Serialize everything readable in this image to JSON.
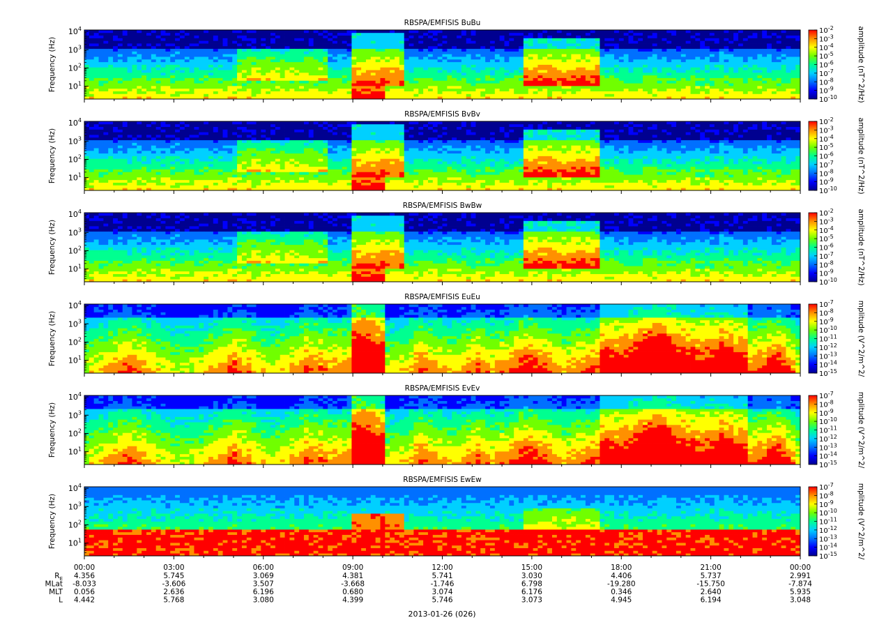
{
  "figure": {
    "date_label": "2013-01-26 (026)"
  },
  "chart_data": [
    {
      "type": "heatmap",
      "title": "RBSPA/EMFISIS  BuBu",
      "ylabel": "Frequency (Hz)",
      "yscale": "log",
      "ylim": [
        2,
        12000
      ],
      "yticks": [
        "10^1",
        "10^2",
        "10^3",
        "10^4"
      ],
      "colorbar_label": "amplitude (nT^2/Hz)",
      "colorbar_range": [
        "10^-10",
        "10^-2"
      ],
      "colorbar_ticks": [
        "10^-2",
        "10^-3",
        "10^-4",
        "10^-5",
        "10^-6",
        "10^-7",
        "10^-8",
        "10^-9",
        "10^-10"
      ],
      "regime": "B"
    },
    {
      "type": "heatmap",
      "title": "RBSPA/EMFISIS  BvBv",
      "ylabel": "Frequency (Hz)",
      "yscale": "log",
      "ylim": [
        2,
        12000
      ],
      "yticks": [
        "10^1",
        "10^2",
        "10^3",
        "10^4"
      ],
      "colorbar_label": "amplitude (nT^2/Hz)",
      "colorbar_range": [
        "10^-10",
        "10^-2"
      ],
      "colorbar_ticks": [
        "10^-2",
        "10^-3",
        "10^-4",
        "10^-5",
        "10^-6",
        "10^-7",
        "10^-8",
        "10^-9",
        "10^-10"
      ],
      "regime": "B"
    },
    {
      "type": "heatmap",
      "title": "RBSPA/EMFISIS  BwBw",
      "ylabel": "Frequency (Hz)",
      "yscale": "log",
      "ylim": [
        2,
        12000
      ],
      "yticks": [
        "10^1",
        "10^2",
        "10^3",
        "10^4"
      ],
      "colorbar_label": "amplitude (nT^2/Hz)",
      "colorbar_range": [
        "10^-10",
        "10^-2"
      ],
      "colorbar_ticks": [
        "10^-2",
        "10^-3",
        "10^-4",
        "10^-5",
        "10^-6",
        "10^-7",
        "10^-8",
        "10^-9",
        "10^-10"
      ],
      "regime": "B"
    },
    {
      "type": "heatmap",
      "title": "RBSPA/EMFISIS  EuEu",
      "ylabel": "Frequency (Hz)",
      "yscale": "log",
      "ylim": [
        2,
        12000
      ],
      "yticks": [
        "10^1",
        "10^2",
        "10^3",
        "10^4"
      ],
      "colorbar_label": "mplitude (V^2/m^2/",
      "colorbar_range": [
        "10^-15",
        "10^-7"
      ],
      "colorbar_ticks": [
        "10^-7",
        "10^-8",
        "10^-9",
        "10^-10",
        "10^-11",
        "10^-12",
        "10^-13",
        "10^-14",
        "10^-15"
      ],
      "regime": "E"
    },
    {
      "type": "heatmap",
      "title": "RBSPA/EMFISIS  EvEv",
      "ylabel": "Frequency (Hz)",
      "yscale": "log",
      "ylim": [
        2,
        12000
      ],
      "yticks": [
        "10^1",
        "10^2",
        "10^3",
        "10^4"
      ],
      "colorbar_label": "mplitude (V^2/m^2/",
      "colorbar_range": [
        "10^-15",
        "10^-7"
      ],
      "colorbar_ticks": [
        "10^-7",
        "10^-8",
        "10^-9",
        "10^-10",
        "10^-11",
        "10^-12",
        "10^-13",
        "10^-14",
        "10^-15"
      ],
      "regime": "E"
    },
    {
      "type": "heatmap",
      "title": "RBSPA/EMFISIS  EwEw",
      "ylabel": "Frequency (Hz)",
      "yscale": "log",
      "ylim": [
        2,
        12000
      ],
      "yticks": [
        "10^1",
        "10^2",
        "10^3",
        "10^4"
      ],
      "colorbar_label": "mplitude (V^2/m^2/",
      "colorbar_range": [
        "10^-15",
        "10^-7"
      ],
      "colorbar_ticks": [
        "10^-7",
        "10^-8",
        "10^-9",
        "10^-10",
        "10^-11",
        "10^-12",
        "10^-13",
        "10^-14",
        "10^-15"
      ],
      "regime": "Ew"
    }
  ],
  "x_axis": {
    "tick_labels": [
      "00:00",
      "03:00",
      "06:00",
      "09:00",
      "12:00",
      "15:00",
      "18:00",
      "21:00",
      "00:00"
    ],
    "ephemeris": [
      {
        "label": "R_E",
        "values": [
          "4.356",
          "5.745",
          "3.069",
          "4.381",
          "5.741",
          "3.030",
          "4.406",
          "5.737",
          "2.991"
        ]
      },
      {
        "label": "MLat",
        "values": [
          "-8.033",
          "-3.606",
          "3.507",
          "-3.668",
          "-1.746",
          "6.798",
          "-19.280",
          "-15.750",
          "-7.874"
        ]
      },
      {
        "label": "MLT",
        "values": [
          "0.056",
          "2.636",
          "6.196",
          "0.680",
          "3.074",
          "6.176",
          "0.346",
          "2.640",
          "5.935"
        ]
      },
      {
        "label": "L",
        "values": [
          "4.442",
          "5.768",
          "3.080",
          "4.399",
          "5.746",
          "3.073",
          "4.945",
          "6.194",
          "3.048"
        ]
      }
    ]
  },
  "colors": {
    "colormap": [
      "#000090",
      "#0000ff",
      "#0070ff",
      "#00d0ff",
      "#00ff90",
      "#70ff00",
      "#ffff00",
      "#ff9000",
      "#ff0000"
    ],
    "background_gap": "#000000",
    "frame": "#000000"
  }
}
